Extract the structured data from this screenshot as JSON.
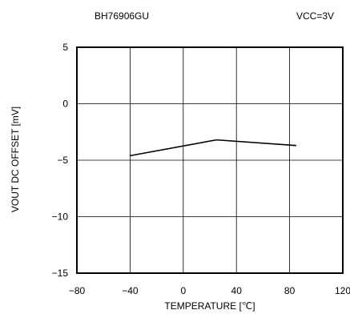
{
  "chart_data": {
    "type": "line",
    "title": "BH76906GU",
    "annotation": "VCC=3V",
    "xlabel": "TEMPERATURE [℃]",
    "ylabel": "VOUT DC OFFSET [mV]",
    "xlim": [
      -80,
      120
    ],
    "ylim": [
      -15,
      5
    ],
    "xticks": [
      -80,
      -40,
      0,
      40,
      80,
      120
    ],
    "yticks": [
      5,
      0,
      -5,
      -10,
      -15
    ],
    "xtick_labels": [
      "−80",
      "−40",
      "0",
      "40",
      "80",
      "120"
    ],
    "ytick_labels": [
      "5",
      "0",
      "−5",
      "−10",
      "−15"
    ],
    "grid": true,
    "series": [
      {
        "color": "#000000",
        "x": [
          -40,
          25,
          85
        ],
        "y": [
          -4.6,
          -3.2,
          -3.7
        ]
      }
    ]
  }
}
